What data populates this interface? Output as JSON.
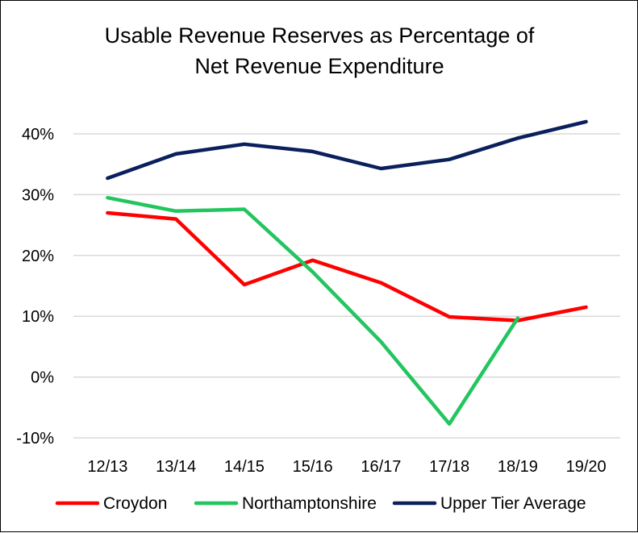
{
  "chart_data": {
    "type": "line",
    "title_lines": [
      "Usable Revenue Reserves as Percentage of",
      "Net Revenue Expenditure"
    ],
    "categories": [
      "12/13",
      "13/14",
      "14/15",
      "15/16",
      "16/17",
      "17/18",
      "18/19",
      "19/20"
    ],
    "ylim": [
      -10,
      40
    ],
    "yticks": [
      -10,
      0,
      10,
      20,
      30,
      40
    ],
    "ytick_labels": [
      "-10%",
      "0%",
      "10%",
      "20%",
      "30%",
      "40%"
    ],
    "grid": true,
    "legend_position": "bottom",
    "series": [
      {
        "name": "Croydon",
        "color": "#FF0000",
        "values": [
          27.0,
          26.0,
          15.2,
          19.2,
          15.5,
          9.9,
          9.3,
          11.5
        ]
      },
      {
        "name": "Northamptonshire",
        "color": "#22C55E",
        "values": [
          29.5,
          27.3,
          27.6,
          17.3,
          5.8,
          -7.7,
          9.7,
          null
        ]
      },
      {
        "name": "Upper Tier Average",
        "color": "#0A1F5C",
        "values": [
          32.7,
          36.7,
          38.3,
          37.1,
          34.3,
          35.8,
          39.3,
          42.0
        ]
      }
    ]
  }
}
